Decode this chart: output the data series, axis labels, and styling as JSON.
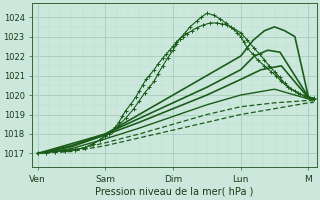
{
  "xlabel": "Pression niveau de la mer( hPa )",
  "background_color": "#cce8dc",
  "plot_bg_color": "#cce8dc",
  "grid_major_color": "#aaccbb",
  "grid_minor_color": "#bbddd0",
  "yticks": [
    1017,
    1018,
    1019,
    1020,
    1021,
    1022,
    1023,
    1024
  ],
  "ylim": [
    1016.3,
    1024.7
  ],
  "xtick_labels": [
    "Ven",
    "Sam",
    "Dim",
    "Lun",
    "M"
  ],
  "xtick_positions": [
    0,
    1,
    2,
    3,
    4
  ],
  "xlim": [
    -0.08,
    4.12
  ],
  "line_color": "#1a5c1a",
  "lines": [
    {
      "x": [
        0.0,
        0.12,
        0.25,
        0.4,
        0.55,
        0.7,
        0.82,
        0.92,
        1.0,
        1.05,
        1.1,
        1.18,
        1.3,
        1.42,
        1.5,
        1.58,
        1.65,
        1.72,
        1.78,
        1.85,
        1.92,
        2.0,
        2.05,
        2.1,
        2.18,
        2.25,
        2.35,
        2.42,
        2.5,
        2.6,
        2.7,
        2.78,
        2.85,
        2.95,
        3.0,
        3.05,
        3.1,
        3.18,
        3.25,
        3.35,
        3.45,
        3.52,
        3.6,
        3.7,
        3.8,
        3.88,
        3.95,
        4.0,
        4.08
      ],
      "y": [
        1017.0,
        1017.05,
        1017.1,
        1017.15,
        1017.2,
        1017.3,
        1017.5,
        1017.7,
        1017.9,
        1018.0,
        1018.15,
        1018.4,
        1018.8,
        1019.3,
        1019.7,
        1020.1,
        1020.4,
        1020.7,
        1021.1,
        1021.5,
        1021.9,
        1022.3,
        1022.6,
        1022.9,
        1023.2,
        1023.5,
        1023.8,
        1024.0,
        1024.2,
        1024.1,
        1023.9,
        1023.7,
        1023.5,
        1023.2,
        1023.0,
        1022.7,
        1022.4,
        1022.1,
        1021.8,
        1021.5,
        1021.2,
        1021.0,
        1020.7,
        1020.4,
        1020.2,
        1020.05,
        1019.95,
        1019.9,
        1019.85
      ],
      "style": "marker",
      "lw": 1.3
    },
    {
      "x": [
        0.0,
        0.12,
        0.25,
        0.4,
        0.55,
        0.7,
        0.82,
        0.92,
        1.0,
        1.05,
        1.1,
        1.15,
        1.2,
        1.25,
        1.3,
        1.38,
        1.45,
        1.5,
        1.55,
        1.6,
        1.65,
        1.72,
        1.78,
        1.85,
        1.9,
        1.95,
        2.0,
        2.05,
        2.1,
        2.15,
        2.2,
        2.28,
        2.35,
        2.45,
        2.55,
        2.65,
        2.72,
        2.8,
        2.9,
        3.0,
        3.1,
        3.2,
        3.28,
        3.35,
        3.42,
        3.5,
        3.58,
        3.65,
        3.75,
        3.85,
        3.95,
        4.0,
        4.08
      ],
      "y": [
        1017.0,
        1017.05,
        1017.1,
        1017.15,
        1017.2,
        1017.3,
        1017.5,
        1017.7,
        1017.9,
        1018.0,
        1018.15,
        1018.35,
        1018.6,
        1018.9,
        1019.2,
        1019.55,
        1019.9,
        1020.2,
        1020.5,
        1020.8,
        1021.0,
        1021.3,
        1021.6,
        1021.9,
        1022.1,
        1022.3,
        1022.5,
        1022.7,
        1022.9,
        1023.0,
        1023.15,
        1023.3,
        1023.45,
        1023.6,
        1023.7,
        1023.7,
        1023.65,
        1023.6,
        1023.4,
        1023.2,
        1022.8,
        1022.4,
        1022.1,
        1021.8,
        1021.5,
        1021.2,
        1020.9,
        1020.6,
        1020.3,
        1020.1,
        1019.95,
        1019.88,
        1019.82
      ],
      "style": "marker",
      "lw": 1.3
    },
    {
      "x": [
        0.0,
        0.5,
        1.0,
        1.5,
        2.0,
        2.5,
        3.0,
        3.18,
        3.35,
        3.5,
        3.65,
        3.8,
        4.0,
        4.08
      ],
      "y": [
        1017.0,
        1017.5,
        1018.0,
        1019.0,
        1020.0,
        1021.0,
        1022.0,
        1022.8,
        1023.3,
        1023.5,
        1023.3,
        1023.0,
        1019.9,
        1019.8
      ],
      "style": "solid",
      "lw": 1.2
    },
    {
      "x": [
        0.0,
        0.5,
        1.0,
        1.5,
        2.0,
        2.5,
        3.0,
        3.2,
        3.4,
        3.58,
        4.0,
        4.08
      ],
      "y": [
        1017.0,
        1017.4,
        1018.0,
        1018.8,
        1019.6,
        1020.4,
        1021.3,
        1022.0,
        1022.3,
        1022.2,
        1019.9,
        1019.8
      ],
      "style": "solid",
      "lw": 1.2
    },
    {
      "x": [
        0.0,
        0.5,
        1.0,
        1.5,
        2.0,
        2.5,
        3.0,
        3.3,
        3.6,
        4.0,
        4.08
      ],
      "y": [
        1017.0,
        1017.35,
        1017.95,
        1018.6,
        1019.3,
        1020.0,
        1020.8,
        1021.3,
        1021.5,
        1019.85,
        1019.78
      ],
      "style": "solid",
      "lw": 1.2
    },
    {
      "x": [
        0.0,
        0.5,
        1.0,
        1.5,
        2.0,
        2.5,
        3.0,
        3.5,
        4.0,
        4.08
      ],
      "y": [
        1017.0,
        1017.25,
        1017.75,
        1018.3,
        1018.9,
        1019.5,
        1020.0,
        1020.3,
        1019.8,
        1019.75
      ],
      "style": "solid",
      "lw": 1.0
    },
    {
      "x": [
        0.0,
        0.5,
        1.0,
        1.5,
        2.0,
        2.5,
        3.0,
        3.5,
        4.0,
        4.08
      ],
      "y": [
        1017.0,
        1017.15,
        1017.55,
        1018.0,
        1018.5,
        1019.0,
        1019.4,
        1019.6,
        1019.72,
        1019.7
      ],
      "style": "dashed_thin",
      "lw": 0.9
    },
    {
      "x": [
        0.0,
        0.5,
        1.0,
        1.5,
        2.0,
        2.5,
        3.0,
        3.5,
        4.0,
        4.08
      ],
      "y": [
        1017.0,
        1017.1,
        1017.4,
        1017.8,
        1018.2,
        1018.6,
        1019.0,
        1019.3,
        1019.6,
        1019.62
      ],
      "style": "dashed_thin",
      "lw": 0.9
    }
  ]
}
